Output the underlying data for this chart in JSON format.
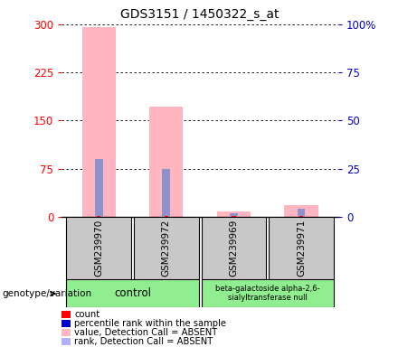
{
  "title": "GDS3151 / 1450322_s_at",
  "samples": [
    "GSM239970",
    "GSM239972",
    "GSM239969",
    "GSM239971"
  ],
  "pink_bars": [
    295,
    172,
    8,
    18
  ],
  "blue_bars_pct": [
    30,
    25,
    2,
    4
  ],
  "red_bars": [
    2,
    2,
    1,
    2
  ],
  "ylim_left": [
    0,
    300
  ],
  "ylim_right": [
    0,
    100
  ],
  "yticks_left": [
    0,
    75,
    150,
    225,
    300
  ],
  "yticks_right": [
    0,
    25,
    50,
    75,
    100
  ],
  "ytick_labels_right": [
    "0",
    "25",
    "50",
    "75",
    "100%"
  ],
  "genotype_label": "genotype/variation",
  "legend_items": [
    {
      "color": "#ff0000",
      "label": "count"
    },
    {
      "color": "#0000cc",
      "label": "percentile rank within the sample"
    },
    {
      "color": "#ffb6c1",
      "label": "value, Detection Call = ABSENT"
    },
    {
      "color": "#b0b0ff",
      "label": "rank, Detection Call = ABSENT"
    }
  ],
  "pink_color": "#FFB6C1",
  "blue_color": "#9090CC",
  "red_color": "#FF0000",
  "left_tick_color": "#FF0000",
  "right_tick_color": "#0000CC",
  "group1_label": "control",
  "group2_label": "beta-galactoside alpha-2,6-\nsialyltransferase null",
  "group_color": "#90EE90",
  "label_bg_color": "#C8C8C8"
}
